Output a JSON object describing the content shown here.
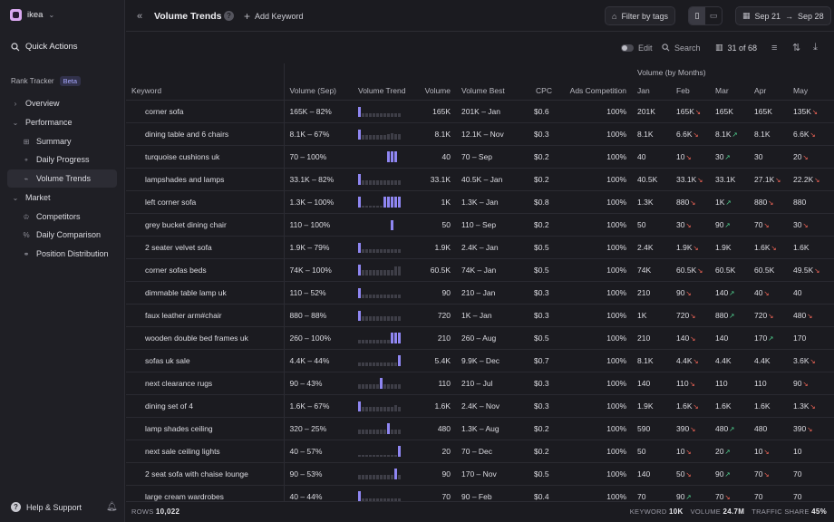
{
  "workspace": {
    "name": "ikea"
  },
  "sidebar": {
    "quick_actions": "Quick Actions",
    "section": "Rank Tracker",
    "badge": "Beta",
    "items": [
      {
        "label": "Overview",
        "icon": "chevron-right-icon",
        "glyph": "›",
        "level": 0
      },
      {
        "label": "Performance",
        "icon": "chevron-down-icon",
        "glyph": "⌄",
        "level": 0
      },
      {
        "label": "Summary",
        "icon": "grid-icon",
        "glyph": "⊞",
        "level": 1
      },
      {
        "label": "Daily Progress",
        "icon": "progress-icon",
        "glyph": "⚬",
        "level": 1
      },
      {
        "label": "Volume Trends",
        "icon": "trend-icon",
        "glyph": "⌁",
        "level": 1,
        "active": true
      },
      {
        "label": "Market",
        "icon": "chevron-down-icon",
        "glyph": "⌄",
        "level": 0
      },
      {
        "label": "Competitors",
        "icon": "trophy-icon",
        "glyph": "♔",
        "level": 1
      },
      {
        "label": "Daily Comparison",
        "icon": "percent-icon",
        "glyph": "%",
        "level": 1
      },
      {
        "label": "Position Distribution",
        "icon": "distribution-icon",
        "glyph": "⚭",
        "level": 1
      }
    ],
    "help": "Help & Support"
  },
  "header": {
    "title": "Volume Trends",
    "add_keyword": "Add Keyword",
    "filter": "Filter by tags",
    "date_from": "Sep 21",
    "date_to": "Sep 28"
  },
  "toolbar": {
    "edit": "Edit",
    "search": "Search",
    "columns": "31 of 68"
  },
  "table": {
    "group_header": "Volume (by Months)",
    "columns": [
      "Keyword",
      "Volume (Sep)",
      "Volume Trend",
      "Volume",
      "Volume Best",
      "CPC",
      "Ads Competition",
      "Jan",
      "Feb",
      "Mar",
      "Apr",
      "May"
    ],
    "rows": [
      {
        "keyword": "corner sofa",
        "range": "165K – 82%",
        "trend": [
          9,
          3,
          3,
          3,
          3,
          3,
          3,
          3,
          3,
          3,
          3,
          3
        ],
        "volume": "165K",
        "best": "201K – Jan",
        "cpc": "$0.6",
        "ads": "100%",
        "months": [
          [
            "201K",
            ""
          ],
          [
            "165K",
            "dn"
          ],
          [
            "165K",
            ""
          ],
          [
            "165K",
            ""
          ],
          [
            "135K",
            "dn"
          ]
        ]
      },
      {
        "keyword": "dining table and 6 chairs",
        "range": "8.1K – 67%",
        "trend": [
          9,
          4,
          4,
          4,
          4,
          4,
          4,
          4,
          5,
          6,
          5,
          5
        ],
        "volume": "8.1K",
        "best": "12.1K – Nov",
        "cpc": "$0.3",
        "ads": "100%",
        "months": [
          [
            "8.1K",
            ""
          ],
          [
            "6.6K",
            "dn"
          ],
          [
            "8.1K",
            "up"
          ],
          [
            "8.1K",
            ""
          ],
          [
            "6.6K",
            "dn"
          ]
        ]
      },
      {
        "keyword": "turquoise cushions uk",
        "range": "70 – 100%",
        "trend": [
          0,
          0,
          0,
          0,
          0,
          0,
          0,
          0,
          10,
          10,
          10,
          0
        ],
        "volume": "40",
        "best": "70 – Sep",
        "cpc": "$0.2",
        "ads": "100%",
        "months": [
          [
            "40",
            ""
          ],
          [
            "10",
            "dn"
          ],
          [
            "30",
            "up"
          ],
          [
            "30",
            ""
          ],
          [
            "20",
            "dn"
          ]
        ]
      },
      {
        "keyword": "lampshades and lamps",
        "range": "33.1K – 82%",
        "trend": [
          10,
          4,
          4,
          4,
          4,
          4,
          4,
          4,
          4,
          4,
          4,
          4
        ],
        "volume": "33.1K",
        "best": "40.5K – Jan",
        "cpc": "$0.2",
        "ads": "100%",
        "months": [
          [
            "40.5K",
            ""
          ],
          [
            "33.1K",
            "dn"
          ],
          [
            "33.1K",
            ""
          ],
          [
            "27.1K",
            "dn"
          ],
          [
            "22.2K",
            "dn"
          ]
        ]
      },
      {
        "keyword": "left corner sofa",
        "range": "1.3K – 100%",
        "trend": [
          10,
          2,
          2,
          2,
          2,
          2,
          2,
          10,
          10,
          10,
          10,
          10
        ],
        "volume": "1K",
        "best": "1.3K – Jan",
        "cpc": "$0.8",
        "ads": "100%",
        "months": [
          [
            "1.3K",
            ""
          ],
          [
            "880",
            "dn"
          ],
          [
            "1K",
            "up"
          ],
          [
            "880",
            "dn"
          ],
          [
            "880",
            ""
          ]
        ]
      },
      {
        "keyword": "grey bucket dining chair",
        "range": "110 – 100%",
        "trend": [
          0,
          0,
          0,
          0,
          0,
          0,
          0,
          0,
          0,
          9,
          0,
          0
        ],
        "volume": "50",
        "best": "110 – Sep",
        "cpc": "$0.2",
        "ads": "100%",
        "months": [
          [
            "50",
            ""
          ],
          [
            "30",
            "dn"
          ],
          [
            "90",
            "up"
          ],
          [
            "70",
            "dn"
          ],
          [
            "30",
            "dn"
          ]
        ]
      },
      {
        "keyword": "2 seater velvet sofa",
        "range": "1.9K – 79%",
        "trend": [
          9,
          3,
          3,
          3,
          3,
          3,
          3,
          3,
          3,
          3,
          3,
          3
        ],
        "volume": "1.9K",
        "best": "2.4K – Jan",
        "cpc": "$0.5",
        "ads": "100%",
        "months": [
          [
            "2.4K",
            ""
          ],
          [
            "1.9K",
            "dn"
          ],
          [
            "1.9K",
            ""
          ],
          [
            "1.6K",
            "dn"
          ],
          [
            "1.6K",
            ""
          ]
        ]
      },
      {
        "keyword": "corner sofas beds",
        "range": "74K – 100%",
        "trend": [
          10,
          5,
          5,
          5,
          5,
          5,
          5,
          5,
          5,
          5,
          8,
          8
        ],
        "volume": "60.5K",
        "best": "74K – Jan",
        "cpc": "$0.5",
        "ads": "100%",
        "months": [
          [
            "74K",
            ""
          ],
          [
            "60.5K",
            "dn"
          ],
          [
            "60.5K",
            ""
          ],
          [
            "60.5K",
            ""
          ],
          [
            "49.5K",
            "dn"
          ]
        ]
      },
      {
        "keyword": "dimmable table lamp uk",
        "range": "110 – 52%",
        "trend": [
          9,
          3,
          3,
          3,
          3,
          3,
          3,
          3,
          3,
          3,
          3,
          3
        ],
        "volume": "90",
        "best": "210 – Jan",
        "cpc": "$0.3",
        "ads": "100%",
        "months": [
          [
            "210",
            ""
          ],
          [
            "90",
            "dn"
          ],
          [
            "140",
            "up"
          ],
          [
            "40",
            "dn"
          ],
          [
            "40",
            ""
          ]
        ]
      },
      {
        "keyword": "faux leather arm#chair",
        "range": "880 – 88%",
        "trend": [
          9,
          4,
          4,
          4,
          4,
          4,
          4,
          4,
          4,
          4,
          4,
          4
        ],
        "volume": "720",
        "best": "1K – Jan",
        "cpc": "$0.3",
        "ads": "100%",
        "months": [
          [
            "1K",
            ""
          ],
          [
            "720",
            "dn"
          ],
          [
            "880",
            "up"
          ],
          [
            "720",
            "dn"
          ],
          [
            "480",
            "dn"
          ]
        ]
      },
      {
        "keyword": "wooden double bed frames uk",
        "range": "260 – 100%",
        "trend": [
          3,
          3,
          3,
          3,
          3,
          3,
          3,
          3,
          3,
          10,
          10,
          10
        ],
        "volume": "210",
        "best": "260 – Aug",
        "cpc": "$0.5",
        "ads": "100%",
        "months": [
          [
            "210",
            ""
          ],
          [
            "140",
            "dn"
          ],
          [
            "140",
            ""
          ],
          [
            "170",
            "up"
          ],
          [
            "170",
            ""
          ]
        ]
      },
      {
        "keyword": "sofas uk sale",
        "range": "4.4K – 44%",
        "trend": [
          3,
          3,
          3,
          3,
          3,
          3,
          3,
          3,
          3,
          3,
          3,
          10
        ],
        "volume": "5.4K",
        "best": "9.9K – Dec",
        "cpc": "$0.7",
        "ads": "100%",
        "months": [
          [
            "8.1K",
            ""
          ],
          [
            "4.4K",
            "dn"
          ],
          [
            "4.4K",
            ""
          ],
          [
            "4.4K",
            ""
          ],
          [
            "3.6K",
            "dn"
          ]
        ]
      },
      {
        "keyword": "next clearance rugs",
        "range": "90 – 43%",
        "trend": [
          4,
          4,
          4,
          4,
          4,
          4,
          10,
          4,
          4,
          4,
          4,
          4
        ],
        "volume": "110",
        "best": "210 – Jul",
        "cpc": "$0.3",
        "ads": "100%",
        "months": [
          [
            "140",
            ""
          ],
          [
            "110",
            "dn"
          ],
          [
            "110",
            ""
          ],
          [
            "110",
            ""
          ],
          [
            "90",
            "dn"
          ]
        ]
      },
      {
        "keyword": "dining set of 4",
        "range": "1.6K – 67%",
        "trend": [
          9,
          4,
          4,
          4,
          4,
          4,
          4,
          4,
          4,
          4,
          6,
          4
        ],
        "volume": "1.6K",
        "best": "2.4K – Nov",
        "cpc": "$0.3",
        "ads": "100%",
        "months": [
          [
            "1.9K",
            ""
          ],
          [
            "1.6K",
            "dn"
          ],
          [
            "1.6K",
            ""
          ],
          [
            "1.6K",
            ""
          ],
          [
            "1.3K",
            "dn"
          ]
        ]
      },
      {
        "keyword": "lamp shades ceiling",
        "range": "320 – 25%",
        "trend": [
          4,
          4,
          4,
          4,
          4,
          4,
          4,
          4,
          10,
          4,
          4,
          4
        ],
        "volume": "480",
        "best": "1.3K – Aug",
        "cpc": "$0.2",
        "ads": "100%",
        "months": [
          [
            "590",
            ""
          ],
          [
            "390",
            "dn"
          ],
          [
            "480",
            "up"
          ],
          [
            "480",
            ""
          ],
          [
            "390",
            "dn"
          ]
        ]
      },
      {
        "keyword": "next sale ceiling lights",
        "range": "40 – 57%",
        "trend": [
          2,
          2,
          2,
          2,
          2,
          2,
          2,
          2,
          2,
          2,
          2,
          10
        ],
        "volume": "20",
        "best": "70 – Dec",
        "cpc": "$0.2",
        "ads": "100%",
        "months": [
          [
            "50",
            ""
          ],
          [
            "10",
            "dn"
          ],
          [
            "20",
            "up"
          ],
          [
            "10",
            "dn"
          ],
          [
            "10",
            ""
          ]
        ]
      },
      {
        "keyword": "2 seat sofa with chaise lounge",
        "range": "90 – 53%",
        "trend": [
          4,
          4,
          4,
          4,
          4,
          4,
          4,
          4,
          4,
          4,
          10,
          4
        ],
        "volume": "90",
        "best": "170 – Nov",
        "cpc": "$0.5",
        "ads": "100%",
        "months": [
          [
            "140",
            ""
          ],
          [
            "50",
            "dn"
          ],
          [
            "90",
            "up"
          ],
          [
            "70",
            "dn"
          ],
          [
            "70",
            ""
          ]
        ]
      },
      {
        "keyword": "large cream wardrobes",
        "range": "40 – 44%",
        "trend": [
          10,
          3,
          3,
          3,
          3,
          3,
          3,
          3,
          3,
          3,
          3,
          3
        ],
        "volume": "70",
        "best": "90 – Feb",
        "cpc": "$0.4",
        "ads": "100%",
        "months": [
          [
            "70",
            ""
          ],
          [
            "90",
            "up"
          ],
          [
            "70",
            "dn"
          ],
          [
            "70",
            ""
          ],
          [
            "70",
            ""
          ]
        ]
      }
    ]
  },
  "footer": {
    "rows_label": "ROWS",
    "rows_value": "10,022",
    "keyword_label": "KEYWORD",
    "keyword_value": "10K",
    "volume_label": "VOLUME",
    "volume_value": "24.7M",
    "traffic_label": "TRAFFIC SHARE",
    "traffic_value": "45%"
  },
  "colors": {
    "accent": "#8f86f2",
    "down": "#ff6a5a",
    "up": "#4fd08e"
  }
}
